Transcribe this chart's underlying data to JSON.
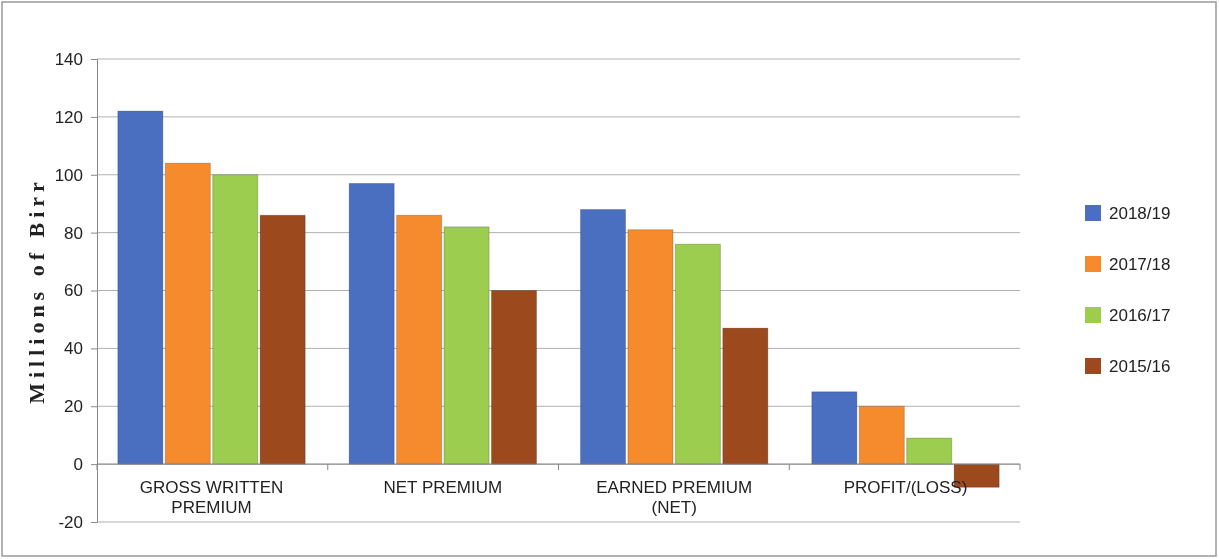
{
  "chart_data": {
    "type": "bar",
    "ylabel": "Millions of Birr",
    "categories": [
      "GROSS WRITTEN PREMIUM",
      "NET PREMIUM",
      "EARNED PREMIUM (NET)",
      "PROFIT/(LOSS)"
    ],
    "series": [
      {
        "name": "2018/19",
        "color": "#4a6fc1",
        "values": [
          122,
          97,
          88,
          25
        ]
      },
      {
        "name": "2017/18",
        "color": "#f58b2c",
        "values": [
          104,
          86,
          81,
          20
        ]
      },
      {
        "name": "2016/17",
        "color": "#9ccd4e",
        "values": [
          100,
          82,
          76,
          9
        ]
      },
      {
        "name": "2015/16",
        "color": "#9c4a1d",
        "values": [
          86,
          60,
          47,
          -8
        ]
      }
    ],
    "ylim": [
      -20,
      140
    ],
    "yticks": [
      -20,
      0,
      20,
      40,
      60,
      80,
      100,
      120,
      140
    ],
    "grid": "y",
    "legend": "right"
  }
}
